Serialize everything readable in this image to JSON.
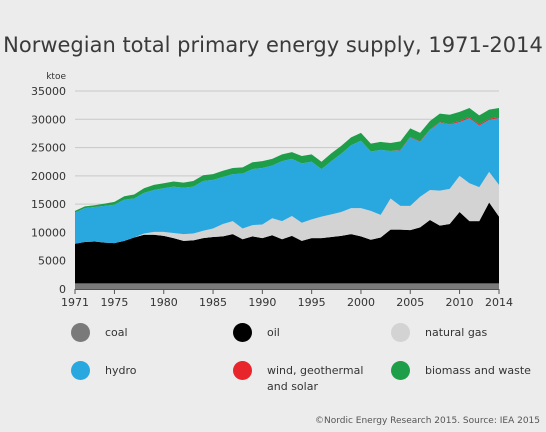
{
  "chart_data": {
    "type": "area",
    "stacked": true,
    "title": "Norwegian total primary energy supply, 1971-2014",
    "ylabel": "ktoe",
    "xlabel": "",
    "xlim": [
      1971,
      2014
    ],
    "ylim": [
      0,
      35000
    ],
    "x_ticks": [
      1971,
      1975,
      1980,
      1985,
      1990,
      1995,
      2000,
      2005,
      2010,
      2014
    ],
    "y_ticks": [
      0,
      5000,
      10000,
      15000,
      20000,
      25000,
      30000,
      35000
    ],
    "grid": true,
    "legend_position": "bottom",
    "x": [
      1971,
      1972,
      1973,
      1974,
      1975,
      1976,
      1977,
      1978,
      1979,
      1980,
      1981,
      1982,
      1983,
      1984,
      1985,
      1986,
      1987,
      1988,
      1989,
      1990,
      1991,
      1992,
      1993,
      1994,
      1995,
      1996,
      1997,
      1998,
      1999,
      2000,
      2001,
      2002,
      2003,
      2004,
      2005,
      2006,
      2007,
      2008,
      2009,
      2010,
      2011,
      2012,
      2013,
      2014
    ],
    "series": [
      {
        "name": "coal",
        "color": "#7a7a7a",
        "values": [
          1000,
          1000,
          1000,
          1000,
          1000,
          1000,
          1000,
          1000,
          1000,
          1000,
          1000,
          1000,
          1000,
          1000,
          1000,
          1000,
          1000,
          1000,
          1000,
          1000,
          1000,
          1000,
          1000,
          1000,
          1000,
          1000,
          1000,
          1000,
          1000,
          1000,
          1000,
          1000,
          1000,
          1000,
          1000,
          1000,
          1000,
          1000,
          1000,
          1000,
          1000,
          1000,
          1000,
          1000
        ]
      },
      {
        "name": "oil",
        "color": "#000000",
        "values": [
          7000,
          7300,
          7400,
          7200,
          7100,
          7500,
          8100,
          8600,
          8600,
          8400,
          8000,
          7500,
          7600,
          8000,
          8200,
          8300,
          8700,
          7800,
          8300,
          8000,
          8500,
          7800,
          8400,
          7500,
          8000,
          8000,
          8200,
          8400,
          8700,
          8300,
          7700,
          8100,
          9500,
          9500,
          9400,
          9900,
          11200,
          10200,
          10500,
          12600,
          11000,
          11000,
          14300,
          11800
        ]
      },
      {
        "name": "natural gas",
        "color": "#d3d3d3",
        "values": [
          0,
          0,
          0,
          0,
          0,
          0,
          0,
          200,
          500,
          700,
          900,
          1200,
          1200,
          1300,
          1500,
          2200,
          2300,
          1900,
          2000,
          2400,
          3000,
          3200,
          3500,
          3200,
          3300,
          3800,
          4000,
          4200,
          4600,
          5000,
          5100,
          4000,
          5500,
          4200,
          4300,
          5400,
          5300,
          6200,
          6200,
          6400,
          6700,
          6000,
          5400,
          5600
        ]
      },
      {
        "name": "hydro",
        "color": "#29a8e0",
        "values": [
          5500,
          6000,
          6100,
          6500,
          6800,
          7300,
          6900,
          7200,
          7400,
          7700,
          8200,
          8200,
          8300,
          8800,
          8600,
          8300,
          8300,
          9700,
          9900,
          10000,
          9300,
          10600,
          10100,
          10500,
          10200,
          8400,
          9400,
          10300,
          11100,
          11900,
          10500,
          11500,
          8400,
          9800,
          12100,
          9700,
          10600,
          12000,
          11400,
          9500,
          11500,
          10900,
          9200,
          11800
        ]
      },
      {
        "name": "wind, geothermal and solar",
        "color": "#e8252b",
        "values": [
          0,
          0,
          0,
          0,
          0,
          0,
          0,
          0,
          0,
          0,
          0,
          0,
          0,
          0,
          0,
          0,
          0,
          0,
          0,
          0,
          0,
          0,
          0,
          0,
          0,
          0,
          0,
          0,
          0,
          0,
          0,
          0,
          0,
          100,
          100,
          100,
          100,
          100,
          100,
          200,
          200,
          200,
          200,
          200
        ]
      },
      {
        "name": "biomass and waste",
        "color": "#1f9e4a",
        "values": [
          300,
          300,
          300,
          400,
          500,
          600,
          700,
          800,
          900,
          900,
          900,
          900,
          1000,
          1000,
          1000,
          1100,
          1100,
          1100,
          1200,
          1200,
          1200,
          1200,
          1200,
          1300,
          1300,
          1300,
          1400,
          1400,
          1400,
          1400,
          1400,
          1400,
          1400,
          1500,
          1500,
          1500,
          1500,
          1500,
          1600,
          1600,
          1600,
          1600,
          1600,
          1600
        ]
      }
    ]
  },
  "legend": {
    "items": [
      {
        "label": "coal",
        "color": "#7a7a7a"
      },
      {
        "label": "oil",
        "color": "#000000"
      },
      {
        "label": "natural gas",
        "color": "#d3d3d3"
      },
      {
        "label": "hydro",
        "color": "#29a8e0"
      },
      {
        "label": "wind, geothermal and solar",
        "color": "#e8252b"
      },
      {
        "label": "biomass and waste",
        "color": "#1f9e4a"
      }
    ]
  },
  "footer": {
    "credit": "©Nordic Energy Research 2015. Source: IEA 2015"
  }
}
